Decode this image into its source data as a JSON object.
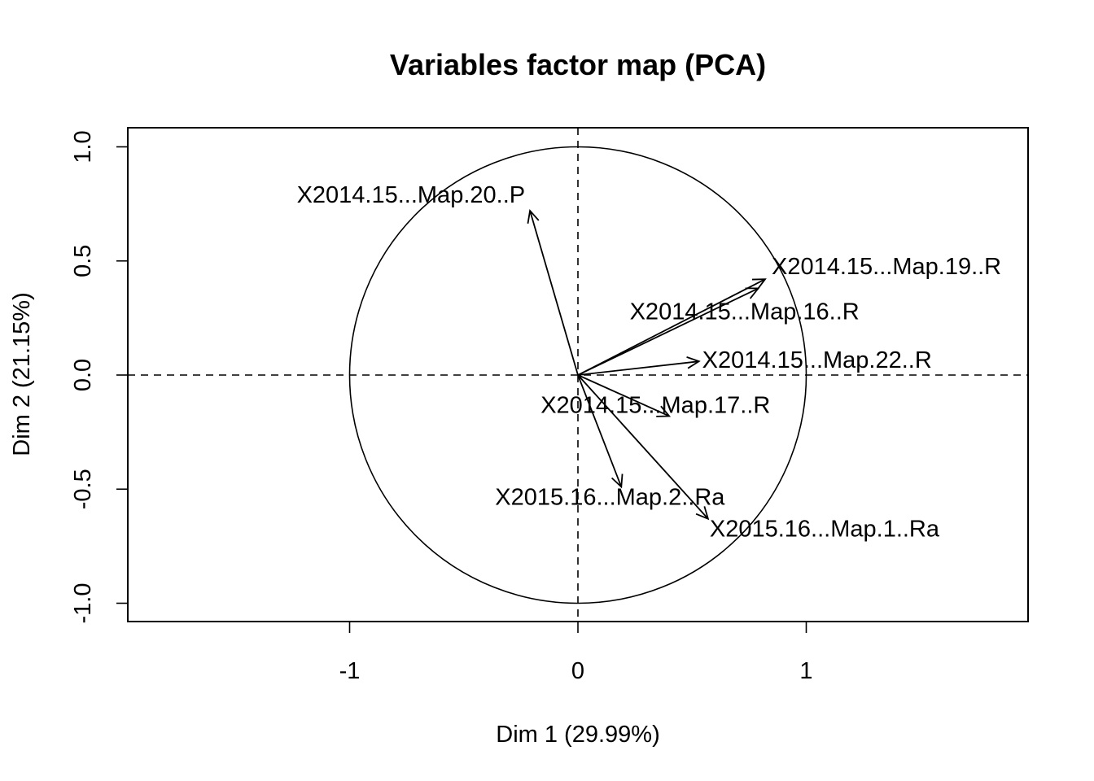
{
  "chart_data": {
    "type": "scatter",
    "title": "Variables factor map (PCA)",
    "xlabel": "Dim 1 (29.99%)",
    "ylabel": "Dim 2 (21.15%)",
    "xlim": [
      -1.0,
      1.0
    ],
    "ylim": [
      -1.0,
      1.0
    ],
    "x_ticks": [
      -1,
      0,
      1
    ],
    "y_ticks": [
      -1.0,
      -0.5,
      0.0,
      0.5,
      1.0
    ],
    "x_tick_labels": [
      "-1",
      "0",
      "1"
    ],
    "y_tick_labels": [
      "-1.0",
      "-0.5",
      "0.0",
      "0.5",
      "1.0"
    ],
    "unit_circle": true,
    "reference_lines": {
      "x": 0,
      "y": 0,
      "style": "dashed"
    },
    "variables": [
      {
        "name": "X2014.15...Map.20..P",
        "x": -0.21,
        "y": 0.72
      },
      {
        "name": "X2014.15...Map.19..R",
        "x": 0.82,
        "y": 0.42
      },
      {
        "name": "X2014.15...Map.16..R",
        "x": 0.79,
        "y": 0.38
      },
      {
        "name": "X2014.15...Map.22..R",
        "x": 0.53,
        "y": 0.06
      },
      {
        "name": "X2014.15...Map.17..R",
        "x": 0.4,
        "y": -0.18
      },
      {
        "name": "X2015.16...Map.2..Ra",
        "x": 0.19,
        "y": -0.49
      },
      {
        "name": "X2015.16...Map.1..Ra",
        "x": 0.57,
        "y": -0.63
      }
    ]
  }
}
